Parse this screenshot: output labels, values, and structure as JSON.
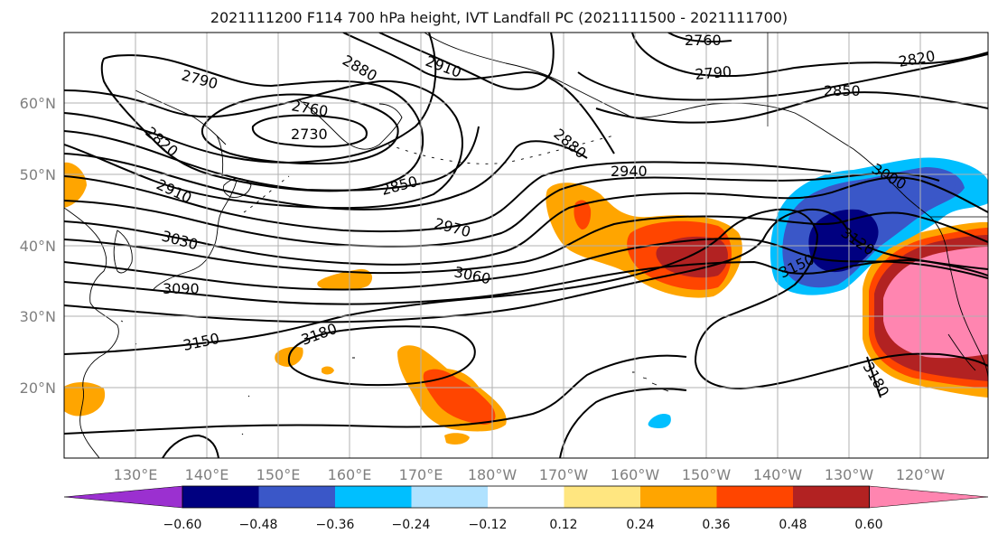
{
  "title": "2021111200 F114 700 hPa height, IVT Landfall PC (2021111500 - 2021111700)",
  "map": {
    "lon_labels": [
      "130°E",
      "140°E",
      "150°E",
      "160°E",
      "170°E",
      "180°W",
      "170°W",
      "160°W",
      "150°W",
      "140°W",
      "130°W",
      "120°W"
    ],
    "lat_labels": [
      "60°N",
      "50°N",
      "40°N",
      "30°N",
      "20°N"
    ],
    "contour_labels": [
      {
        "text": "2760",
        "name": "contour-label-2760-north"
      },
      {
        "text": "2790",
        "name": "contour-label-2790-west"
      },
      {
        "text": "2880",
        "name": "contour-label-2880-north"
      },
      {
        "text": "2910",
        "name": "contour-label-2910-north"
      },
      {
        "text": "2790",
        "name": "contour-label-2790-east"
      },
      {
        "text": "2820",
        "name": "contour-label-2820-east"
      },
      {
        "text": "2850",
        "name": "contour-label-2850-east"
      },
      {
        "text": "2760",
        "name": "contour-label-2760-low"
      },
      {
        "text": "2730",
        "name": "contour-label-2730-low"
      },
      {
        "text": "2820",
        "name": "contour-label-2820-west"
      },
      {
        "text": "2880",
        "name": "contour-label-2880-trough"
      },
      {
        "text": "2940",
        "name": "contour-label-2940"
      },
      {
        "text": "2910",
        "name": "contour-label-2910-west"
      },
      {
        "text": "2850",
        "name": "contour-label-2850-center"
      },
      {
        "text": "3000",
        "name": "contour-label-3000"
      },
      {
        "text": "2970",
        "name": "contour-label-2970"
      },
      {
        "text": "3030",
        "name": "contour-label-3030"
      },
      {
        "text": "3060",
        "name": "contour-label-3060"
      },
      {
        "text": "3120",
        "name": "contour-label-3120"
      },
      {
        "text": "3090",
        "name": "contour-label-3090"
      },
      {
        "text": "3150",
        "name": "contour-label-3150-east"
      },
      {
        "text": "3180",
        "name": "contour-label-3180-west"
      },
      {
        "text": "3150",
        "name": "contour-label-3150-west"
      },
      {
        "text": "3180",
        "name": "contour-label-3180-east"
      }
    ]
  },
  "colorbar": {
    "ticks": [
      "−0.60",
      "−0.48",
      "−0.36",
      "−0.24",
      "−0.12",
      "0.12",
      "0.24",
      "0.36",
      "0.48",
      "0.60"
    ],
    "colors": [
      "#9b30d0",
      "#000080",
      "#3a57c8",
      "#00bfff",
      "#b0e2ff",
      "#ffffff",
      "#ffe680",
      "#ffa500",
      "#ff4500",
      "#b22222",
      "#ff85b0",
      "#ff85b0"
    ]
  },
  "colors": {
    "contour": "#000000",
    "grid": "#b0b0b0",
    "axis_label": "#7f7f7f"
  }
}
